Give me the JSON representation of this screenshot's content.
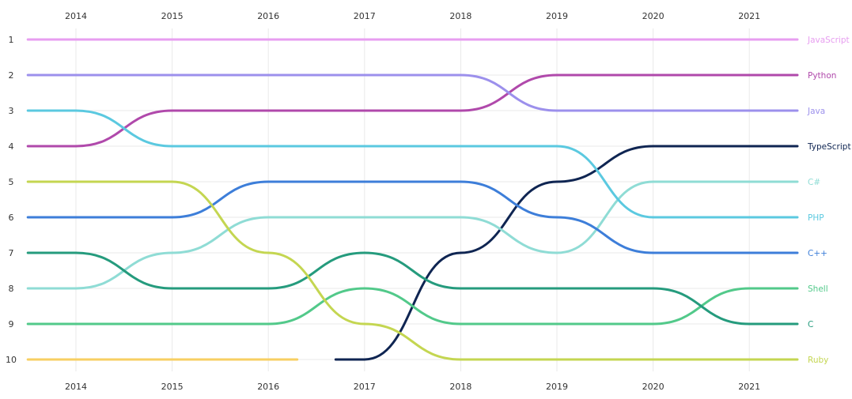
{
  "chart_data": {
    "type": "line",
    "subtype": "bump",
    "x": [
      "2014",
      "2015",
      "2016",
      "2017",
      "2018",
      "2019",
      "2020",
      "2021"
    ],
    "y_ticks": [
      "1",
      "2",
      "3",
      "4",
      "5",
      "6",
      "7",
      "8",
      "9",
      "10"
    ],
    "ylim": [
      1,
      10
    ],
    "y_inverted": true,
    "grid": true,
    "series": [
      {
        "name": "JavaScript",
        "color": "#e79ef0",
        "segments": [
          {
            "points": [
              [
                2013.5,
                1
              ],
              [
                2014,
                1
              ],
              [
                2015,
                1
              ],
              [
                2016,
                1
              ],
              [
                2017,
                1
              ],
              [
                2018,
                1
              ],
              [
                2019,
                1
              ],
              [
                2020,
                1
              ],
              [
                2021,
                1
              ],
              [
                2021.5,
                1
              ]
            ]
          }
        ]
      },
      {
        "name": "Python",
        "color": "#b049ab",
        "segments": [
          {
            "points": [
              [
                2013.5,
                4
              ],
              [
                2014,
                4
              ],
              [
                2015,
                3
              ],
              [
                2016,
                3
              ],
              [
                2017,
                3
              ],
              [
                2018,
                3
              ],
              [
                2019,
                2
              ],
              [
                2020,
                2
              ],
              [
                2021,
                2
              ],
              [
                2021.5,
                2
              ]
            ]
          }
        ]
      },
      {
        "name": "Java",
        "color": "#9c90ec",
        "segments": [
          {
            "points": [
              [
                2013.5,
                2
              ],
              [
                2014,
                2
              ],
              [
                2015,
                2
              ],
              [
                2016,
                2
              ],
              [
                2017,
                2
              ],
              [
                2018,
                2
              ],
              [
                2019,
                3
              ],
              [
                2020,
                3
              ],
              [
                2021,
                3
              ],
              [
                2021.5,
                3
              ]
            ]
          }
        ]
      },
      {
        "name": "TypeScript",
        "color": "#0f2552",
        "segments": [
          {
            "points": [
              [
                2016.7,
                10
              ],
              [
                2017,
                10
              ],
              [
                2018,
                7
              ],
              [
                2019,
                5
              ],
              [
                2020,
                4
              ],
              [
                2021,
                4
              ],
              [
                2021.5,
                4
              ]
            ]
          }
        ]
      },
      {
        "name": "C#",
        "color": "#8fdcd5",
        "segments": [
          {
            "points": [
              [
                2013.5,
                8
              ],
              [
                2014,
                8
              ],
              [
                2015,
                7
              ],
              [
                2016,
                6
              ],
              [
                2017,
                6
              ],
              [
                2018,
                6
              ],
              [
                2019,
                7
              ],
              [
                2020,
                5
              ],
              [
                2021,
                5
              ],
              [
                2021.5,
                5
              ]
            ]
          }
        ]
      },
      {
        "name": "PHP",
        "color": "#5bc9e0",
        "segments": [
          {
            "points": [
              [
                2013.5,
                3
              ],
              [
                2014,
                3
              ],
              [
                2015,
                4
              ],
              [
                2016,
                4
              ],
              [
                2017,
                4
              ],
              [
                2018,
                4
              ],
              [
                2019,
                4
              ],
              [
                2020,
                6
              ],
              [
                2021,
                6
              ],
              [
                2021.5,
                6
              ]
            ]
          }
        ]
      },
      {
        "name": "C++",
        "color": "#3d7ed9",
        "segments": [
          {
            "points": [
              [
                2013.5,
                6
              ],
              [
                2014,
                6
              ],
              [
                2015,
                6
              ],
              [
                2016,
                5
              ],
              [
                2017,
                5
              ],
              [
                2018,
                5
              ],
              [
                2019,
                6
              ],
              [
                2020,
                7
              ],
              [
                2021,
                7
              ],
              [
                2021.5,
                7
              ]
            ]
          }
        ]
      },
      {
        "name": "Shell",
        "color": "#52c98a",
        "segments": [
          {
            "points": [
              [
                2013.5,
                9
              ],
              [
                2014,
                9
              ],
              [
                2015,
                9
              ],
              [
                2016,
                9
              ],
              [
                2017,
                8
              ],
              [
                2018,
                9
              ],
              [
                2019,
                9
              ],
              [
                2020,
                9
              ],
              [
                2021,
                8
              ],
              [
                2021.5,
                8
              ]
            ]
          }
        ]
      },
      {
        "name": "C",
        "color": "#259b7d",
        "segments": [
          {
            "points": [
              [
                2013.5,
                7
              ],
              [
                2014,
                7
              ],
              [
                2015,
                8
              ],
              [
                2016,
                8
              ],
              [
                2017,
                7
              ],
              [
                2018,
                8
              ],
              [
                2019,
                8
              ],
              [
                2020,
                8
              ],
              [
                2021,
                9
              ],
              [
                2021.5,
                9
              ]
            ]
          }
        ]
      },
      {
        "name": "Ruby",
        "color": "#c4d651",
        "segments": [
          {
            "points": [
              [
                2013.5,
                5
              ],
              [
                2014,
                5
              ],
              [
                2015,
                5
              ],
              [
                2016,
                7
              ],
              [
                2017,
                9
              ],
              [
                2018,
                10
              ],
              [
                2019,
                10
              ],
              [
                2020,
                10
              ],
              [
                2021,
                10
              ],
              [
                2021.5,
                10
              ]
            ]
          }
        ]
      },
      {
        "name": "",
        "color": "#f7cf62",
        "segments": [
          {
            "points": [
              [
                2013.5,
                10
              ],
              [
                2014,
                10
              ],
              [
                2015,
                10
              ],
              [
                2016,
                10
              ],
              [
                2016.3,
                10
              ]
            ]
          }
        ]
      }
    ]
  }
}
